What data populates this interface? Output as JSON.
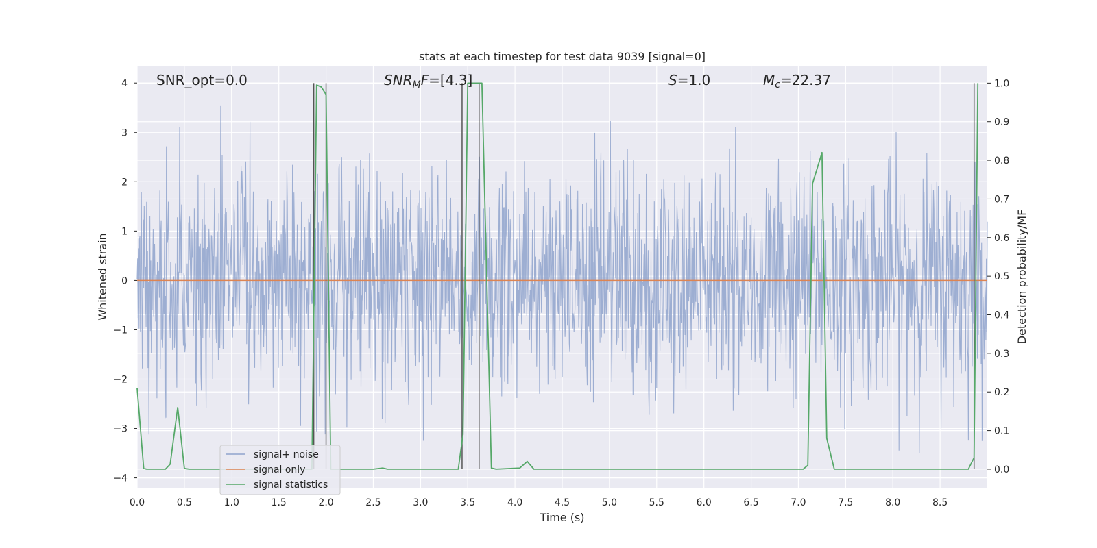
{
  "chart_data": {
    "type": "line",
    "title": "stats at each timestep for test data 9039 [signal=0]",
    "xlabel": "Time (s)",
    "ylabel": "Whitened strain",
    "y2label": "Detection probability/MF",
    "xlim": [
      0.0,
      9.0
    ],
    "ylim": [
      -4.2,
      4.35
    ],
    "y2lim": [
      -0.048,
      1.045
    ],
    "xticks": [
      "0.0",
      "0.5",
      "1.0",
      "1.5",
      "2.0",
      "2.5",
      "3.0",
      "3.5",
      "4.0",
      "4.5",
      "5.0",
      "5.5",
      "6.0",
      "6.5",
      "7.0",
      "7.5",
      "8.0",
      "8.5"
    ],
    "yticks": [
      "-4",
      "-3",
      "-2",
      "-1",
      "0",
      "1",
      "2",
      "3",
      "4"
    ],
    "y2ticks": [
      "0.0",
      "0.1",
      "0.2",
      "0.3",
      "0.4",
      "0.5",
      "0.6",
      "0.7",
      "0.8",
      "0.9",
      "1.0"
    ],
    "grid": true,
    "legend_position": "lower-left",
    "annotations": {
      "snr_opt": "SNR_opt=0.0",
      "snr_mf_italic": "SNR",
      "snr_mf_sub": "M",
      "snr_mf_italic2": "F",
      "snr_mf_value": "=[4.3]",
      "s_italic": "S",
      "s_value": "=1.0",
      "mc_italic": "M",
      "mc_sub": "c",
      "mc_value": "=22.37"
    },
    "series": [
      {
        "name": "signal+ noise",
        "color": "#8fa3cc",
        "description": "whitened noise, approx gaussian, amplitude roughly within -3 to +4",
        "x_range": [
          0.0,
          9.0
        ],
        "sample_spacing": 0.005,
        "envelope": [
          -3.5,
          4.0
        ]
      },
      {
        "name": "signal only",
        "color": "#dd8452",
        "x": [
          0.0,
          9.0
        ],
        "values": [
          0.0,
          0.0
        ]
      },
      {
        "name": "signal statistics",
        "color": "#55a868",
        "axis": "secondary",
        "x": [
          0.0,
          0.07,
          0.1,
          0.2,
          0.3,
          0.35,
          0.43,
          0.5,
          0.55,
          1.5,
          1.85,
          1.9,
          1.95,
          2.0,
          2.05,
          2.5,
          2.6,
          2.65,
          3.4,
          3.45,
          3.5,
          3.55,
          3.6,
          3.65,
          3.75,
          3.8,
          4.05,
          4.13,
          4.2,
          7.05,
          7.1,
          7.15,
          7.25,
          7.3,
          7.38,
          7.5,
          8.8,
          8.86,
          8.9
        ],
        "values": [
          0.21,
          0.002,
          0.0,
          0.0,
          0.0,
          0.013,
          0.16,
          0.002,
          0.0,
          0.0,
          0.0,
          0.995,
          0.99,
          0.97,
          0.0,
          0.0,
          0.003,
          0.0,
          0.0,
          0.09,
          1.0,
          1.0,
          1.0,
          1.0,
          0.003,
          0.0,
          0.003,
          0.02,
          0.0,
          0.0,
          0.01,
          0.74,
          0.82,
          0.08,
          0.0,
          0.0,
          0.0,
          0.03,
          1.0
        ]
      }
    ],
    "vertical_markers_s": [
      1.87,
      2.0,
      3.44,
      3.62,
      8.86
    ]
  }
}
